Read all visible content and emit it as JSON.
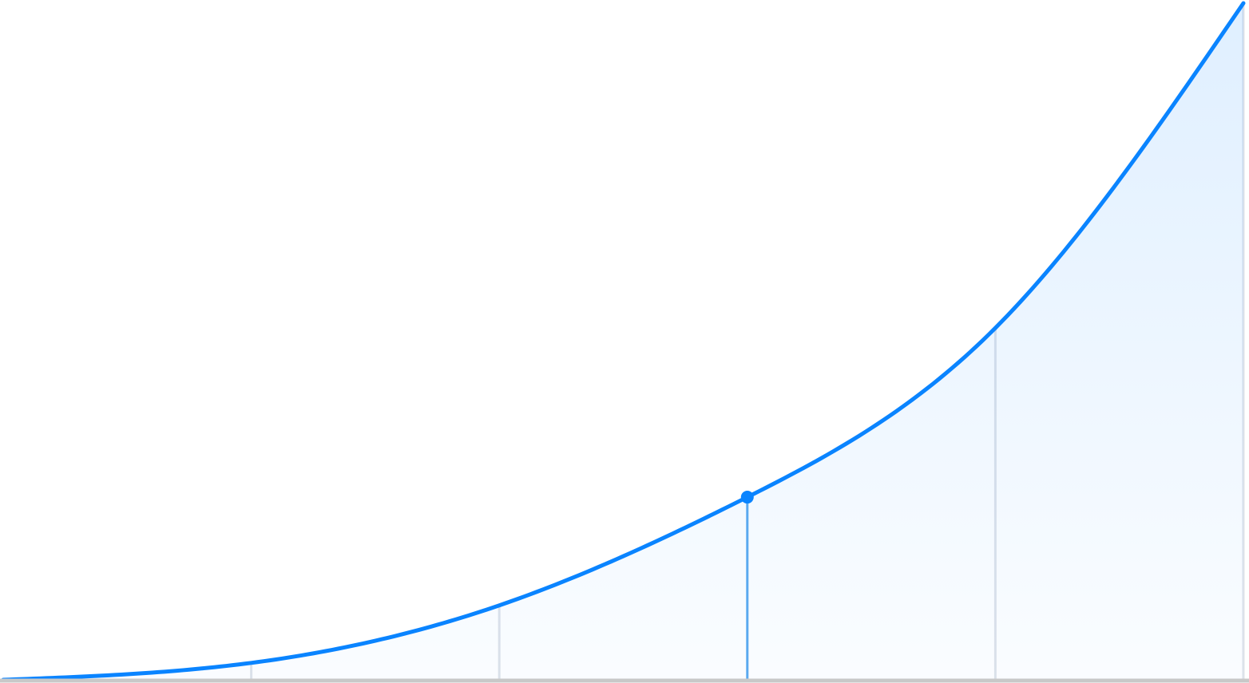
{
  "colors": {
    "background": "#ffffff",
    "line": "#0a84ff",
    "area_fill": "#0a84ff",
    "gridline": "#dfe3ea",
    "highlight_gridline": "#5aa9f0",
    "baseline": "#c8c8c8"
  },
  "chart_data": {
    "type": "area",
    "title": "",
    "xlabel": "",
    "ylabel": "",
    "legend": "none",
    "grid": "vertical",
    "x": [
      0,
      1,
      2,
      3,
      4,
      5
    ],
    "series": [
      {
        "values": [
          0,
          0.025,
          0.11,
          0.27,
          0.52,
          1.0
        ]
      }
    ],
    "xlim": [
      0,
      5
    ],
    "ylim": [
      0,
      1
    ],
    "gridline_x": [
      1,
      2,
      3,
      4,
      5
    ],
    "highlight": {
      "x": 3,
      "y": 0.27
    }
  }
}
